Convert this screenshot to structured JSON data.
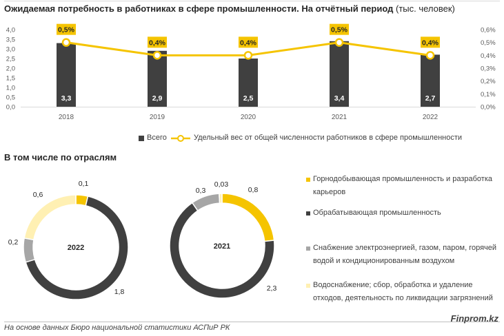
{
  "title": {
    "main": "Ожидаемая потребность в работниках в сфере промышленности. На отчётный период",
    "unit": "(тыс. человек)"
  },
  "subtitle": "В том числе по отраслям",
  "colors": {
    "bar": "#404040",
    "line": "#f5c400",
    "mining": "#f5c400",
    "manufacturing": "#404040",
    "energy": "#a6a6a6",
    "water": "#fff0b3"
  },
  "chart_data": [
    {
      "type": "bar",
      "categories": [
        "2018",
        "2019",
        "2020",
        "2021",
        "2022"
      ],
      "series": [
        {
          "name": "Всего",
          "values": [
            3.3,
            2.9,
            2.5,
            3.4,
            2.7
          ],
          "labels": [
            "3,3",
            "2,9",
            "2,5",
            "3,4",
            "2,7"
          ],
          "axis": "left"
        },
        {
          "name": "Удельный вес от общей численности работников в сфере промышленности",
          "type": "line",
          "values": [
            0.5,
            0.4,
            0.4,
            0.5,
            0.4
          ],
          "labels": [
            "0,5%",
            "0,4%",
            "0,4%",
            "0,5%",
            "0,4%"
          ],
          "axis": "right"
        }
      ],
      "ylim": [
        0,
        4.0
      ],
      "y_ticks": [
        "0,0",
        "0,5",
        "1,0",
        "1,5",
        "2,0",
        "2,5",
        "3,0",
        "3,5",
        "4,0"
      ],
      "y2lim": [
        0,
        0.6
      ],
      "y2_ticks": [
        "0,0%",
        "0,1%",
        "0,2%",
        "0,3%",
        "0,4%",
        "0,5%",
        "0,6%"
      ],
      "legend_position": "bottom"
    },
    {
      "type": "pie",
      "donut": true,
      "center_label": "2022",
      "slices": [
        {
          "name": "Горнодобывающая промышленность и разработка карьеров",
          "value": 0.1,
          "label": "0,1"
        },
        {
          "name": "Обрабатывающая промышленность",
          "value": 1.8,
          "label": "1,8"
        },
        {
          "name": "Снабжение электроэнергией, газом, паром, горячей водой и кондиционированным воздухом",
          "value": 0.2,
          "label": "0,2"
        },
        {
          "name": "Водоснабжение; сбор, обработка и удаление отходов, деятельность по ликвидации загрязнений",
          "value": 0.6,
          "label": "0,6"
        }
      ]
    },
    {
      "type": "pie",
      "donut": true,
      "center_label": "2021",
      "slices": [
        {
          "name": "Горнодобывающая промышленность и разработка карьеров",
          "value": 0.8,
          "label": "0,8"
        },
        {
          "name": "Обрабатывающая промышленность",
          "value": 2.3,
          "label": "2,3"
        },
        {
          "name": "Снабжение электроэнергией, газом, паром, горячей водой и кондиционированным воздухом",
          "value": 0.3,
          "label": "0,3"
        },
        {
          "name": "Водоснабжение; сбор, обработка и удаление отходов, деятельность по ликвидации загрязнений",
          "value": 0.03,
          "label": "0,03"
        }
      ]
    }
  ],
  "pie_legend": [
    {
      "line1": "Горнодобывающая промышленность и разработка",
      "line2": "карьеров"
    },
    {
      "line1": "Обрабатывающая промышленность",
      "line2": ""
    },
    {
      "line1": "Снабжение электроэнергией, газом, паром, горячей",
      "line2": "водой и кондиционированным воздухом"
    },
    {
      "line1": "Водоснабжение; сбор, обработка и удаление",
      "line2": "отходов, деятельность по ликвидации загрязнений"
    }
  ],
  "footer": {
    "source": "На основе данных Бюро национальной статистики АСПиР РК",
    "brand": "Finprom.kz"
  }
}
